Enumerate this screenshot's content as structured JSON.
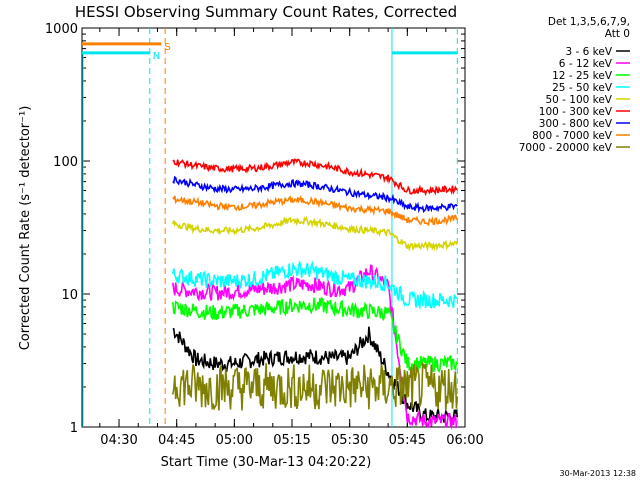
{
  "chart_data": {
    "type": "line",
    "title": "HESSI Observing Summary Count Rates, Corrected",
    "xlabel": "Start Time (30-Mar-13 04:20:22)",
    "ylabel": "Corrected Count Rate (s⁻¹ detector⁻¹)",
    "yscale": "log",
    "ylim": [
      1,
      1000
    ],
    "xlim": [
      "04:20:22",
      "06:00"
    ],
    "x_ticks": [
      "04:30",
      "04:45",
      "05:00",
      "05:15",
      "05:30",
      "05:45",
      "06:00"
    ],
    "y_ticks": [
      "1",
      "10",
      "100",
      "1000"
    ],
    "legend_header": [
      "Det 1,3,5,6,7,9,",
      "Att 0"
    ],
    "legend_position": "right",
    "footer": "30-Mar-2013 12:38",
    "flags": [
      {
        "label": "N",
        "color": "#00e5ee",
        "from": "04:20:22",
        "to": "04:38",
        "level": 650
      },
      {
        "label": "S",
        "color": "#ff8000",
        "from": "04:20:22",
        "to": "04:41",
        "level": 760
      }
    ],
    "attenuator_level": {
      "color": "#00e5ee",
      "from": "05:41",
      "to": "05:58",
      "level": 650
    },
    "vlines": [
      {
        "time": "04:38",
        "color": "#00e5ee",
        "style": "dashed"
      },
      {
        "time": "04:42",
        "color": "#ff8000",
        "style": "dashed"
      },
      {
        "time": "05:41",
        "color": "#00e5ee",
        "style": "solid"
      },
      {
        "time": "05:58",
        "color": "#00e5ee",
        "style": "dashed"
      }
    ],
    "x": [
      "04:44",
      "04:50",
      "04:55",
      "05:00",
      "05:05",
      "05:10",
      "05:15",
      "05:20",
      "05:25",
      "05:30",
      "05:35",
      "05:40",
      "05:45",
      "05:50",
      "05:55",
      "05:58"
    ],
    "series": [
      {
        "name": "3 - 6 keV",
        "color": "#000000",
        "values": [
          5.5,
          3.2,
          3.0,
          3.0,
          3.2,
          3.3,
          3.4,
          3.4,
          3.3,
          3.3,
          5.0,
          2.6,
          1.5,
          1.2,
          1.2,
          1.2
        ]
      },
      {
        "name": "6 - 12 keV",
        "color": "#ff00ff",
        "values": [
          11,
          10.5,
          10.2,
          10.5,
          10.8,
          11.2,
          11.8,
          11.8,
          11.0,
          11.0,
          15,
          11.5,
          1.2,
          1.1,
          1.1,
          1.1
        ]
      },
      {
        "name": "12 - 25 keV",
        "color": "#00ff00",
        "values": [
          8.0,
          7.5,
          7.2,
          7.4,
          7.6,
          7.8,
          8.2,
          8.3,
          8.0,
          7.6,
          7.4,
          7.2,
          3.0,
          3.0,
          3.0,
          3.0
        ]
      },
      {
        "name": "25 - 50 keV",
        "color": "#00ffff",
        "values": [
          14,
          13,
          12.5,
          12.5,
          13,
          14,
          15.5,
          15,
          13.8,
          12.8,
          12.5,
          12.0,
          9.0,
          9.0,
          9.0,
          9.0
        ]
      },
      {
        "name": "50 - 100 keV",
        "color": "#d4d400",
        "values": [
          34,
          31,
          30,
          30,
          31,
          33,
          36,
          35,
          33,
          31,
          30,
          29,
          23,
          23,
          23.5,
          24
        ]
      },
      {
        "name": "100 - 300 keV",
        "color": "#ff0000",
        "values": [
          100,
          92,
          88,
          87,
          88,
          92,
          98,
          96,
          90,
          83,
          79,
          75,
          60,
          60,
          61,
          62
        ]
      },
      {
        "name": "300 - 800 keV",
        "color": "#0000ff",
        "values": [
          73,
          66,
          62,
          61,
          62,
          65,
          68,
          66,
          62,
          58,
          55,
          53,
          45,
          44,
          45,
          46
        ]
      },
      {
        "name": "800 - 7000 keV",
        "color": "#ff8000",
        "values": [
          52,
          49,
          46,
          45,
          46,
          49,
          51,
          50,
          47,
          44,
          43,
          42,
          36,
          35,
          36,
          37
        ]
      },
      {
        "name": "7000 - 20000 keV",
        "color": "#808000",
        "values": [
          2.2,
          2.0,
          2.0,
          2.0,
          2.0,
          2.0,
          2.0,
          2.0,
          2.0,
          2.0,
          2.0,
          2.0,
          2.0,
          2.0,
          2.0,
          2.0
        ]
      }
    ]
  }
}
